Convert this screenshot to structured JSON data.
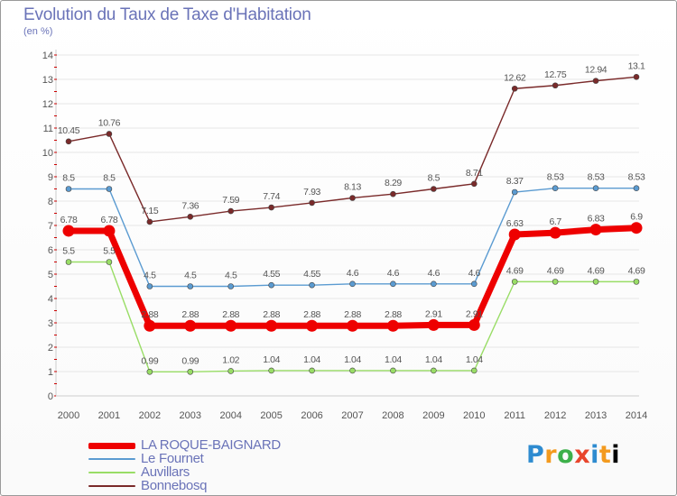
{
  "title": "Evolution du Taux de Taxe d'Habitation",
  "subtitle": "(en %)",
  "logo": {
    "letters": [
      "P",
      "r",
      "o",
      "x",
      "i",
      "t",
      "i"
    ],
    "text": "Proxiti"
  },
  "colors": {
    "axis_text": "#555555",
    "label_text": "#555555",
    "grid": "#e6e6e6",
    "axis_ticks": "#cc0000"
  },
  "chart_data": {
    "type": "line",
    "title": "Evolution du Taux de Taxe d'Habitation",
    "subtitle": "(en %)",
    "xlabel": "",
    "ylabel": "",
    "x": [
      "2000",
      "2001",
      "2002",
      "2003",
      "2004",
      "2005",
      "2006",
      "2007",
      "2008",
      "2009",
      "2010",
      "2011",
      "2012",
      "2013",
      "2014"
    ],
    "ylim": [
      0,
      14
    ],
    "yticks": [
      0,
      1,
      2,
      3,
      4,
      5,
      6,
      7,
      8,
      9,
      10,
      11,
      12,
      13,
      14
    ],
    "grid": true,
    "legend_position": "bottom-left",
    "series": [
      {
        "name": "LA ROQUE-BAIGNARD",
        "color": "#ee0000",
        "emphasis": true,
        "values": [
          6.78,
          6.78,
          2.88,
          2.88,
          2.88,
          2.88,
          2.88,
          2.88,
          2.88,
          2.91,
          2.91,
          6.63,
          6.7,
          6.83,
          6.9
        ],
        "labels": [
          "6.78",
          "6.78",
          "2.88",
          "2.88",
          "2.88",
          "2.88",
          "2.88",
          "2.88",
          "2.88",
          "2.91",
          "2.91",
          "6.63",
          "6.7",
          "6.83",
          "6.9"
        ]
      },
      {
        "name": "Le Fournet",
        "color": "#5b9bd1",
        "emphasis": false,
        "values": [
          8.5,
          8.5,
          4.5,
          4.5,
          4.5,
          4.55,
          4.55,
          4.6,
          4.6,
          4.6,
          4.6,
          8.37,
          8.53,
          8.53,
          8.53
        ],
        "labels": [
          "8.5",
          "8.5",
          "4.5",
          "4.5",
          "4.5",
          "4.55",
          "4.55",
          "4.6",
          "4.6",
          "4.6",
          "4.6",
          "8.37",
          "8.53",
          "8.53",
          "8.53"
        ]
      },
      {
        "name": "Auvillars",
        "color": "#99dd66",
        "emphasis": false,
        "values": [
          5.5,
          5.5,
          0.99,
          0.99,
          1.02,
          1.04,
          1.04,
          1.04,
          1.04,
          1.04,
          1.04,
          4.69,
          4.69,
          4.69,
          4.69
        ],
        "labels": [
          "5.5",
          "5.5",
          "0.99",
          "0.99",
          "1.02",
          "1.04",
          "1.04",
          "1.04",
          "1.04",
          "1.04",
          "1.04",
          "4.69",
          "4.69",
          "4.69",
          "4.69"
        ]
      },
      {
        "name": "Bonnebosq",
        "color": "#7a2a2a",
        "emphasis": false,
        "values": [
          10.45,
          10.76,
          7.15,
          7.36,
          7.59,
          7.74,
          7.93,
          8.13,
          8.29,
          8.5,
          8.71,
          12.62,
          12.75,
          12.94,
          13.1
        ],
        "labels": [
          "10.45",
          "10.76",
          "7.15",
          "7.36",
          "7.59",
          "7.74",
          "7.93",
          "8.13",
          "8.29",
          "8.5",
          "8.71",
          "12.62",
          "12.75",
          "12.94",
          "13.1"
        ]
      }
    ]
  }
}
